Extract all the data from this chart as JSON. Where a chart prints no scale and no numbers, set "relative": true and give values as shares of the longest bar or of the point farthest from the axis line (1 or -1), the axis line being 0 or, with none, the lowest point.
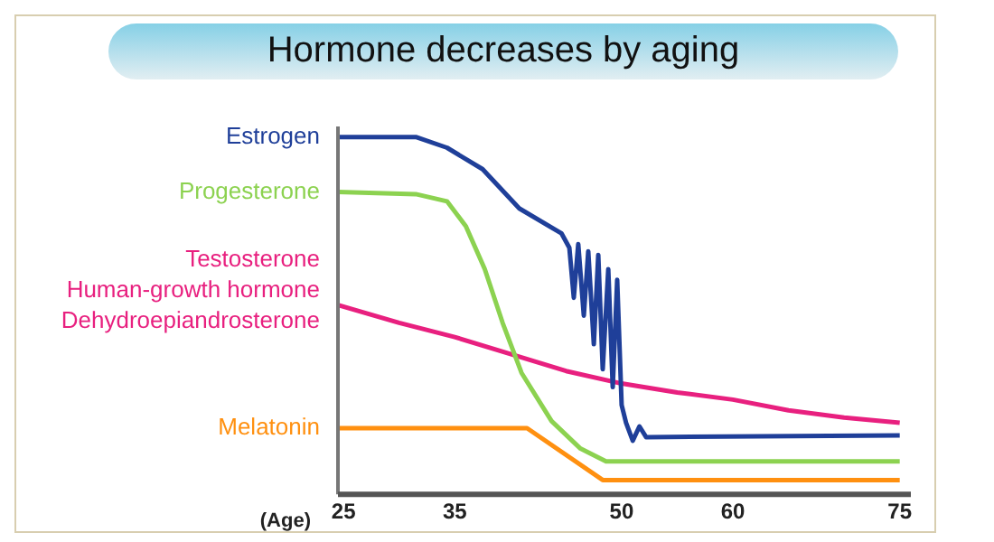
{
  "chart_data": {
    "type": "line",
    "title": "Hormone decreases by aging",
    "xlabel": "(Age)",
    "relative": true,
    "xlim": [
      24.5,
      76
    ],
    "xticks": [
      25,
      35,
      50,
      60,
      75
    ],
    "grid": false,
    "marker": "none",
    "line_style": "solid",
    "tick_labels": "x",
    "series": [
      {
        "name": "Estrogen",
        "color": "#1f3f99",
        "x": [
          24.5,
          31.5,
          34.3,
          37.5,
          40.8,
          44.6,
          45.3,
          45.7,
          46.1,
          46.6,
          47.0,
          47.5,
          47.9,
          48.3,
          48.8,
          49.2,
          49.6,
          50.0,
          50.4,
          51.0,
          51.6,
          52.2,
          75
        ],
        "values": [
          1.0,
          1.0,
          0.97,
          0.91,
          0.8,
          0.73,
          0.69,
          0.55,
          0.7,
          0.5,
          0.68,
          0.42,
          0.67,
          0.35,
          0.63,
          0.3,
          0.6,
          0.25,
          0.2,
          0.15,
          0.19,
          0.16,
          0.165
        ]
      },
      {
        "name": "Progesterone",
        "color": "#8cd250",
        "x": [
          24.5,
          31.5,
          34.3,
          36,
          37.7,
          39.3,
          41,
          43.7,
          46.3,
          48.6,
          75
        ],
        "values": [
          0.846,
          0.84,
          0.82,
          0.75,
          0.63,
          0.48,
          0.34,
          0.205,
          0.128,
          0.092,
          0.092
        ]
      },
      {
        "name": "Testosterone",
        "color": "#e8207f",
        "x": [
          24.5,
          30,
          35,
          40.8,
          45,
          50,
          55,
          60,
          65,
          70,
          75
        ],
        "values": [
          0.53,
          0.48,
          0.44,
          0.385,
          0.345,
          0.31,
          0.285,
          0.265,
          0.235,
          0.215,
          0.2
        ]
      },
      {
        "name": "Melatonin",
        "color": "#ff9010",
        "x": [
          24.5,
          41.5,
          48.3,
          75
        ],
        "values": [
          0.185,
          0.185,
          0.04,
          0.04
        ]
      }
    ],
    "annotations": [
      "Human-growth hormone",
      "Dehydroepiandrosterone"
    ]
  }
}
